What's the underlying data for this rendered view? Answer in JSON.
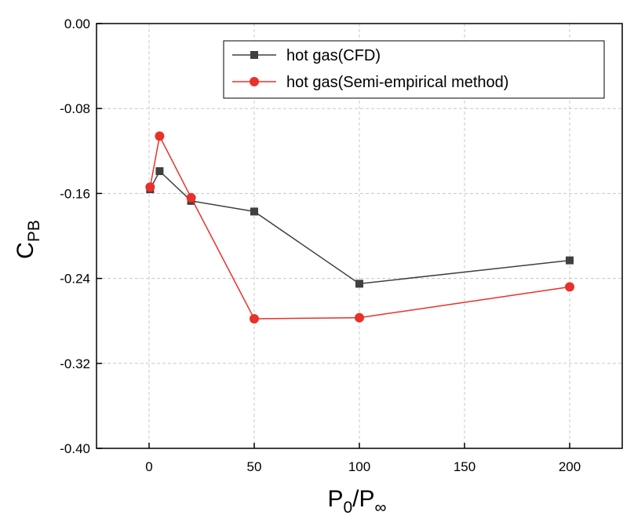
{
  "chart_data": {
    "type": "line",
    "xlabel": {
      "main": "P",
      "sub": "0",
      "sep": "/P",
      "sub2": "∞"
    },
    "ylabel": {
      "main": "C",
      "sub": "PB"
    },
    "xlim": [
      -25,
      225
    ],
    "ylim": [
      -0.4,
      0.0
    ],
    "xticks": [
      0,
      50,
      100,
      150,
      200
    ],
    "yticks": [
      0.0,
      -0.08,
      -0.16,
      -0.24,
      -0.32,
      -0.4
    ],
    "ytick_labels": [
      "0.00",
      "-0.08",
      "-0.16",
      "-0.24",
      "-0.32",
      "-0.40"
    ],
    "grid": true,
    "legend_position": "top-right",
    "series": [
      {
        "name": "hot gas(CFD)",
        "color": "#404040",
        "marker": "square",
        "x": [
          0.5,
          5,
          20,
          50,
          100,
          200
        ],
        "y": [
          -0.156,
          -0.139,
          -0.167,
          -0.177,
          -0.245,
          -0.223
        ]
      },
      {
        "name": "hot gas(Semi-empirical method)",
        "color": "#e8312a",
        "marker": "circle",
        "x": [
          0.5,
          5,
          20,
          50,
          100,
          200
        ],
        "y": [
          -0.154,
          -0.106,
          -0.164,
          -0.278,
          -0.277,
          -0.248
        ]
      }
    ]
  }
}
